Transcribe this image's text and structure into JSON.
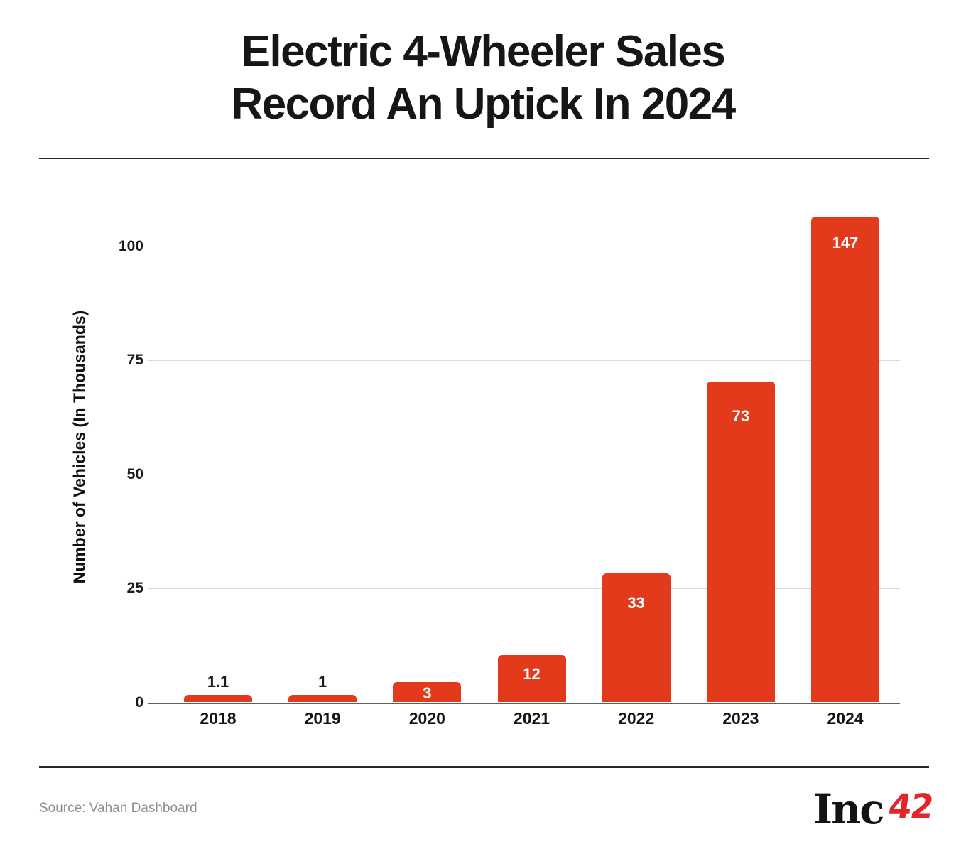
{
  "header": {
    "title_line1": "Electric 4-Wheeler Sales",
    "title_line2": "Record An Uptick In 2024"
  },
  "chart_data": {
    "type": "bar",
    "title": "Electric 4-Wheeler Sales Record An Uptick In 2024",
    "xlabel": "",
    "ylabel": "Number of Vehicles (In Thousands)",
    "yticks": [
      0,
      25,
      50,
      75,
      100
    ],
    "ylim": [
      0,
      110
    ],
    "grid": "horizontal",
    "legend": "none",
    "categories": [
      "2018",
      "2019",
      "2020",
      "2021",
      "2022",
      "2023",
      "2024"
    ],
    "values": [
      1.1,
      1,
      3,
      12,
      33,
      73,
      147
    ],
    "value_labels": [
      "1.1",
      "1",
      "3",
      "12",
      "33",
      "73",
      "147"
    ],
    "bar_heights_axis_units": [
      1.7,
      1.7,
      4.5,
      10.4,
      28.2,
      70.3,
      106.5
    ],
    "label_positions": [
      "above",
      "above",
      "inside",
      "inside",
      "inside",
      "inside",
      "inside"
    ]
  },
  "colors": {
    "bar": "#e33a1c",
    "grid": "#dadada",
    "baseline": "#5f5f5f",
    "label_dark": "#1c1c1c",
    "label_light": "#ffffff",
    "logo_red": "#e2262a"
  },
  "footer": {
    "source": "Source: Vahan Dashboard",
    "logo_black": "Inc",
    "logo_red": "42"
  }
}
